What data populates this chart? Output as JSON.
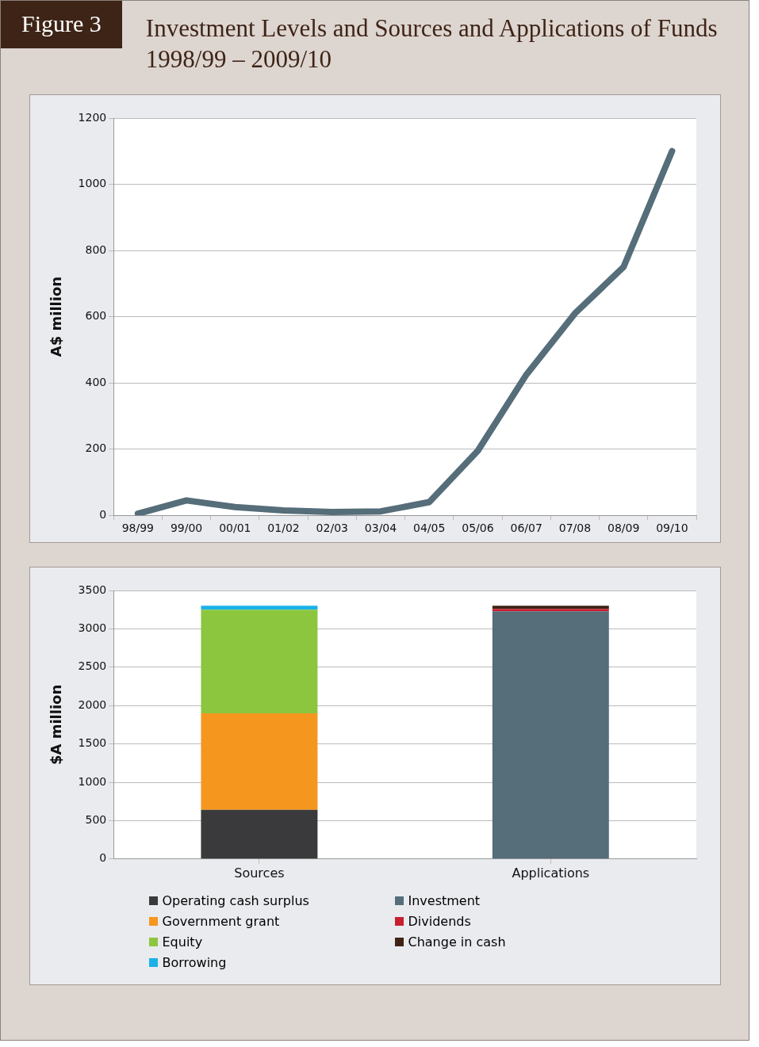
{
  "chart_data": [
    {
      "type": "line",
      "title": "Investment Levels and Sources and Applications of Funds 1998/99 – 2009/10",
      "annotations": [
        "Figure 3"
      ],
      "ylabel": "A$ million",
      "categories": [
        "98/99",
        "99/00",
        "00/01",
        "01/02",
        "02/03",
        "03/04",
        "04/05",
        "05/06",
        "06/07",
        "07/08",
        "08/09",
        "09/10"
      ],
      "values": [
        5,
        45,
        25,
        15,
        10,
        12,
        40,
        195,
        425,
        610,
        750,
        1100
      ],
      "color": "#566d7a",
      "marker": "none",
      "ylim": [
        0,
        1200
      ],
      "yticks": [
        0,
        200,
        400,
        600,
        800,
        1000,
        1200
      ],
      "grid": "y"
    },
    {
      "type": "bar",
      "stacked": true,
      "ylabel": "$A million",
      "categories": [
        "Sources",
        "Applications"
      ],
      "series": [
        {
          "name": "Operating cash surplus",
          "color": "#3a3a3c",
          "values": [
            640,
            null
          ]
        },
        {
          "name": "Government grant",
          "color": "#f5961f",
          "values": [
            1260,
            null
          ]
        },
        {
          "name": "Equity",
          "color": "#8cc63f",
          "values": [
            1350,
            null
          ]
        },
        {
          "name": "Borrowing",
          "color": "#1ab1e8",
          "values": [
            50,
            null
          ]
        },
        {
          "name": "Investment",
          "color": "#566d7a",
          "values": [
            null,
            3230
          ]
        },
        {
          "name": "Dividends",
          "color": "#c8202f",
          "values": [
            null,
            30
          ]
        },
        {
          "name": "Change in cash",
          "color": "#3e2416",
          "values": [
            null,
            40
          ]
        }
      ],
      "ylim": [
        0,
        3500
      ],
      "yticks": [
        0,
        500,
        1000,
        1500,
        2000,
        2500,
        3000,
        3500
      ],
      "grid": "y",
      "legend": "bottom"
    }
  ]
}
